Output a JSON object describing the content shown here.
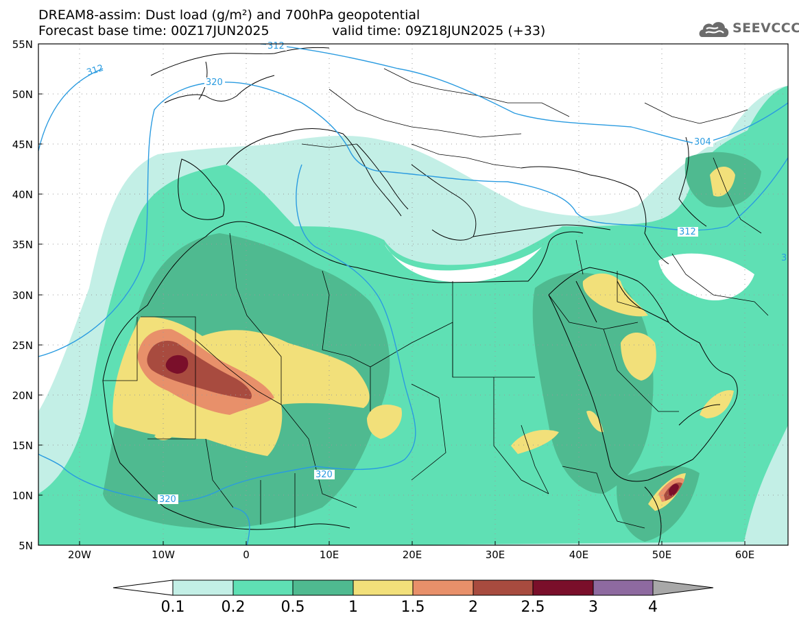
{
  "header": {
    "line1": "DREAM8-assim: Dust load (g/m²) and 700hPa geopotential",
    "line2_base": "Forecast base time: 00Z17JUN2025",
    "line2_valid": "valid time: 09Z18JUN2025 (+33)"
  },
  "logo": {
    "text": "SEEVCCC",
    "icon": "cloud-icon"
  },
  "map": {
    "lat_labels": [
      "55N",
      "50N",
      "45N",
      "40N",
      "35N",
      "30N",
      "25N",
      "20N",
      "15N",
      "10N",
      "5N"
    ],
    "lon_labels": [
      "20W",
      "10W",
      "0",
      "10E",
      "20E",
      "30E",
      "40E",
      "50E",
      "60E"
    ],
    "contour_labels": [
      "312",
      "312",
      "320",
      "304",
      "312",
      "320",
      "320",
      "3"
    ]
  },
  "colorbar": {
    "labels": [
      "0.1",
      "0.2",
      "0.5",
      "1",
      "1.5",
      "2",
      "2.5",
      "3",
      "4"
    ],
    "colors": [
      "#c3efe6",
      "#5fe0b4",
      "#4fba90",
      "#f2e07a",
      "#e8906a",
      "#a84b3f",
      "#7a0f2a",
      "#8e6aa0"
    ],
    "low_arrow_color": "#ffffff",
    "high_arrow_color": "#a8a8a8"
  },
  "palette": {
    "land": "#5fe0b4",
    "contour": "#2a9be0",
    "border": "#000000"
  }
}
